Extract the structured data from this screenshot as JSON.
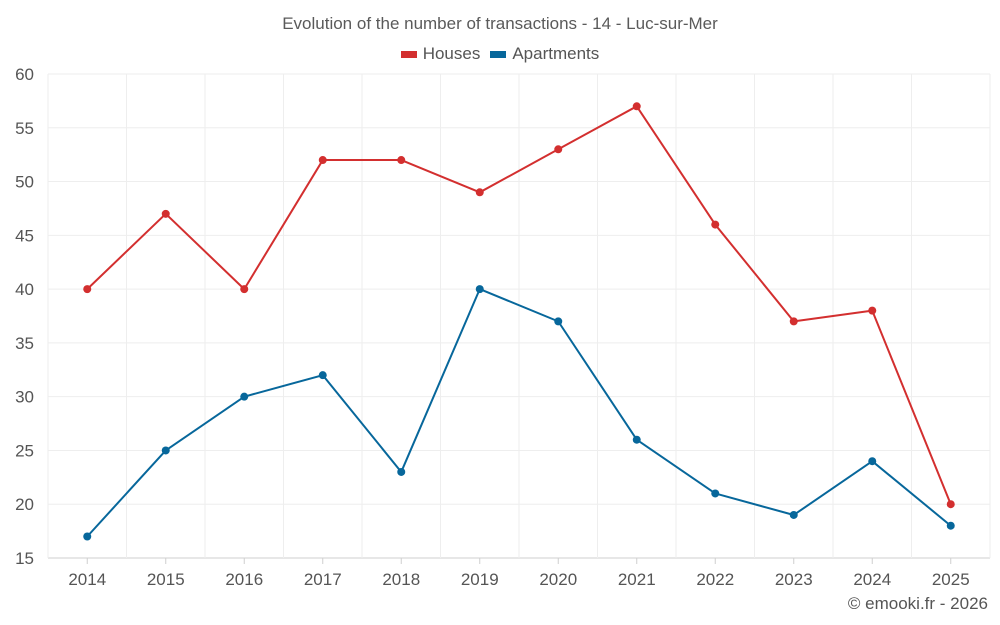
{
  "chart_data": {
    "type": "line",
    "title": "Evolution of the number of transactions - 14 - Luc-sur-Mer",
    "xlabel": "",
    "ylabel": "",
    "ylim": [
      15,
      60
    ],
    "yticks": [
      15,
      20,
      25,
      30,
      35,
      40,
      45,
      50,
      55,
      60
    ],
    "categories": [
      "2014",
      "2015",
      "2016",
      "2017",
      "2018",
      "2019",
      "2020",
      "2021",
      "2022",
      "2023",
      "2024",
      "2025"
    ],
    "series": [
      {
        "name": "Houses",
        "color": "#d32f2f",
        "values": [
          40,
          47,
          40,
          52,
          52,
          49,
          53,
          57,
          46,
          37,
          38,
          20
        ]
      },
      {
        "name": "Apartments",
        "color": "#07679b",
        "values": [
          17,
          25,
          30,
          32,
          23,
          40,
          37,
          26,
          21,
          19,
          24,
          18
        ]
      }
    ],
    "grid": true,
    "legend_position": "top-center"
  },
  "credit": "© emooki.fr - 2026"
}
